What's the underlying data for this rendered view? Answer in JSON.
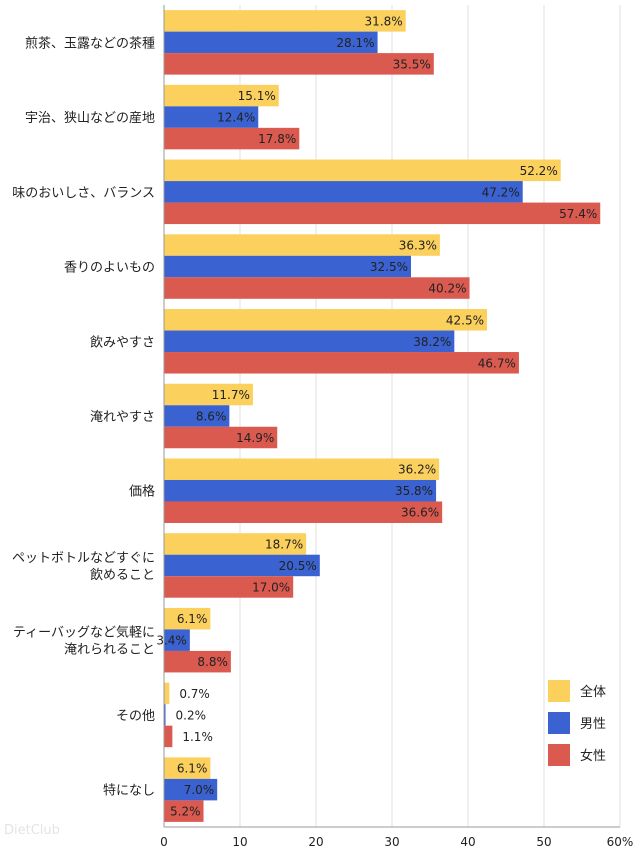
{
  "chart_data": {
    "type": "bar",
    "orientation": "horizontal",
    "categories": [
      [
        "煎茶、玉露などの茶種"
      ],
      [
        "宇治、狭山などの産地"
      ],
      [
        "味のおいしさ、バランス"
      ],
      [
        "香りのよいもの"
      ],
      [
        "飲みやすさ"
      ],
      [
        "淹れやすさ"
      ],
      [
        "価格"
      ],
      [
        "ペットボトルなどすぐに",
        "飲めること"
      ],
      [
        "ティーバッグなど気軽に",
        "淹れられること"
      ],
      [
        "その他"
      ],
      [
        "特になし"
      ]
    ],
    "series": [
      {
        "name": "全体",
        "color": "#fbd05c",
        "values": [
          31.8,
          15.1,
          52.2,
          36.3,
          42.5,
          11.7,
          36.2,
          18.7,
          6.1,
          0.7,
          6.1
        ],
        "labels": [
          "31.8%",
          "15.1%",
          "52.2%",
          "36.3%",
          "42.5%",
          "11.7%",
          "36.2%",
          "18.7%",
          "6.1%",
          "0.7%",
          "6.1%"
        ]
      },
      {
        "name": "男性",
        "color": "#3a62d0",
        "values": [
          28.1,
          12.4,
          47.2,
          32.5,
          38.2,
          8.6,
          35.8,
          20.5,
          3.4,
          0.2,
          7.0
        ],
        "labels": [
          "28.1%",
          "12.4%",
          "47.2%",
          "32.5%",
          "38.2%",
          "8.6%",
          "35.8%",
          "20.5%",
          "3.4%",
          "0.2%",
          "7.0%"
        ]
      },
      {
        "name": "女性",
        "color": "#da5a50",
        "values": [
          35.5,
          17.8,
          57.4,
          40.2,
          46.7,
          14.9,
          36.6,
          17.0,
          8.8,
          1.1,
          5.2
        ],
        "labels": [
          "35.5%",
          "17.8%",
          "57.4%",
          "40.2%",
          "46.7%",
          "14.9%",
          "36.6%",
          "17.0%",
          "8.8%",
          "1.1%",
          "5.2%"
        ]
      }
    ],
    "xlim": [
      0,
      60
    ],
    "xticks": [
      "0",
      "10",
      "20",
      "30",
      "40",
      "50",
      "60%"
    ],
    "legend": "bottom-right"
  },
  "watermark": "DietClub"
}
